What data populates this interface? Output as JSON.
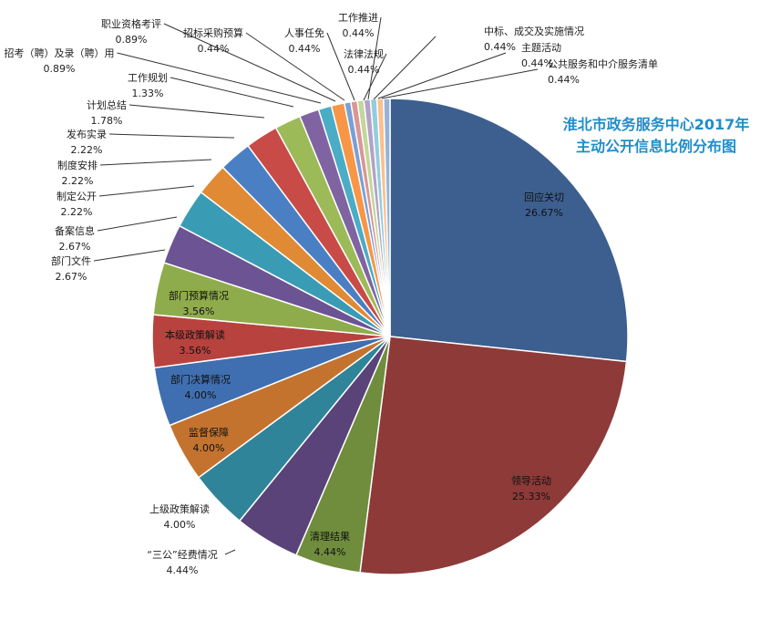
{
  "chart_data": {
    "type": "pie",
    "title_lines": [
      "淮北市政务服务中心2017年",
      "主动公开信息比例分布图"
    ],
    "slices": [
      {
        "name": "回应关切",
        "value": 26.67,
        "label": "26.67%",
        "color": "#3c5f8f"
      },
      {
        "name": "领导活动",
        "value": 25.33,
        "label": "25.33%",
        "color": "#8d3a38"
      },
      {
        "name": "清理结果",
        "value": 4.44,
        "label": "4.44%",
        "color": "#6f8d3c"
      },
      {
        "name": "“三公”经费情况",
        "value": 4.44,
        "label": "4.44%",
        "color": "#5a4378"
      },
      {
        "name": "上级政策解读",
        "value": 4.0,
        "label": "4.00%",
        "color": "#2f8499"
      },
      {
        "name": "监督保障",
        "value": 4.0,
        "label": "4.00%",
        "color": "#c4732f"
      },
      {
        "name": "部门决算情况",
        "value": 4.0,
        "label": "4.00%",
        "color": "#3f6fb0"
      },
      {
        "name": "本级政策解读",
        "value": 3.56,
        "label": "3.56%",
        "color": "#b7423e"
      },
      {
        "name": "部门预算情况",
        "value": 3.56,
        "label": "3.56%",
        "color": "#8fac4c"
      },
      {
        "name": "部门文件",
        "value": 2.67,
        "label": "2.67%",
        "color": "#6c5394"
      },
      {
        "name": "备案信息",
        "value": 2.67,
        "label": "2.67%",
        "color": "#3a9bb5"
      },
      {
        "name": "制定公开",
        "value": 2.22,
        "label": "2.22%",
        "color": "#e08a35"
      },
      {
        "name": "制度安排",
        "value": 2.22,
        "label": "2.22%",
        "color": "#4a7fc4"
      },
      {
        "name": "发布实录",
        "value": 2.22,
        "label": "2.22%",
        "color": "#c84b47"
      },
      {
        "name": "计划总结",
        "value": 1.78,
        "label": "1.78%",
        "color": "#9cbb58"
      },
      {
        "name": "工作规划",
        "value": 1.33,
        "label": "1.33%",
        "color": "#8064a2"
      },
      {
        "name": "招考（聘）及录（聘）用",
        "value": 0.89,
        "label": "0.89%",
        "color": "#4bacc6"
      },
      {
        "name": "职业资格考评",
        "value": 0.89,
        "label": "0.89%",
        "color": "#f79646"
      },
      {
        "name": "招标采购预算",
        "value": 0.44,
        "label": "0.44%",
        "color": "#7a9fd6"
      },
      {
        "name": "人事任免",
        "value": 0.44,
        "label": "0.44%",
        "color": "#d99694"
      },
      {
        "name": "法律法规",
        "value": 0.44,
        "label": "0.44%",
        "color": "#c3d69b"
      },
      {
        "name": "工作推进",
        "value": 0.44,
        "label": "0.44%",
        "color": "#b3a2c7"
      },
      {
        "name": "中标、成交及实施情况",
        "value": 0.44,
        "label": "0.44%",
        "color": "#93cddd"
      },
      {
        "name": "主题活动",
        "value": 0.44,
        "label": "0.44%",
        "color": "#fac090"
      },
      {
        "name": "公共服务和中介服务清单",
        "value": 0.44,
        "label": "0.44%",
        "color": "#95b3d7"
      }
    ]
  }
}
